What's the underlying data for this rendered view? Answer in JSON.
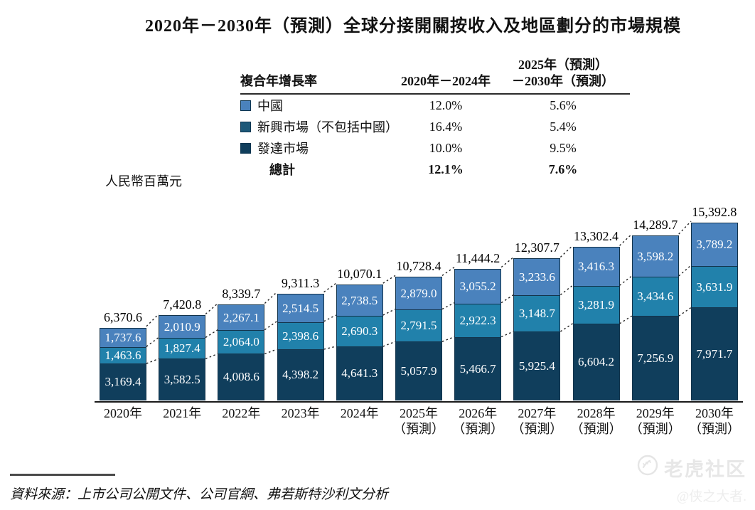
{
  "title": "2020年－2030年（預測）全球分接開關按收入及地區劃分的市場規模",
  "unit_label": "人民幣百萬元",
  "cagr_table": {
    "header": {
      "col_label": "複合年增長率",
      "col1": "2020年－2024年",
      "col2_line1": "2025年（預測）",
      "col2_line2": "－2030年（預測）"
    },
    "rows": [
      {
        "label": "中國",
        "swatch_color": "#4a82bd",
        "cagr_2020_2024": "12.0%",
        "cagr_2025_2030": "5.6%"
      },
      {
        "label": "新興市場（不包括中國）",
        "swatch_color": "#1d5878",
        "cagr_2020_2024": "16.4%",
        "cagr_2025_2030": "5.4%"
      },
      {
        "label": "發達市場",
        "swatch_color": "#103e5c",
        "cagr_2020_2024": "10.0%",
        "cagr_2025_2030": "9.5%"
      }
    ],
    "total_row": {
      "label": "總計",
      "cagr_2020_2024": "12.1%",
      "cagr_2025_2030": "7.6%"
    }
  },
  "chart_data": {
    "type": "bar",
    "stacked": true,
    "title": "2020年－2030年（預測）全球分接開關按收入及地區劃分的市場規模",
    "ylabel": "人民幣百萬元",
    "legend_position": "top",
    "grid": false,
    "categories": [
      "2020年",
      "2021年",
      "2022年",
      "2023年",
      "2024年",
      "2025年（預測）",
      "2026年（預測）",
      "2027年（預測）",
      "2028年（預測）",
      "2029年（預測）",
      "2030年（預測）"
    ],
    "series": [
      {
        "name": "中國",
        "color": "#4a82bd",
        "values": [
          1737.6,
          2010.9,
          2267.1,
          2514.5,
          2738.5,
          2879.0,
          3055.2,
          3233.6,
          3416.3,
          3598.2,
          3789.2
        ]
      },
      {
        "name": "新興市場（不包括中國）",
        "color": "#2181ab",
        "values": [
          1463.6,
          1827.4,
          2064.0,
          2398.6,
          2690.3,
          2791.5,
          2922.3,
          3148.7,
          3281.9,
          3434.6,
          3631.9
        ]
      },
      {
        "name": "發達市場",
        "color": "#103e5c",
        "values": [
          3169.4,
          3582.5,
          4008.6,
          4398.2,
          4641.3,
          5057.9,
          5466.7,
          5925.4,
          6604.2,
          7256.9,
          7971.7
        ]
      }
    ],
    "totals": [
      6370.6,
      7420.8,
      8339.7,
      9311.3,
      10070.1,
      10728.4,
      11444.2,
      12307.7,
      13302.4,
      14289.7,
      15392.8
    ],
    "ylim": [
      0,
      15392.8
    ]
  },
  "source": "資料來源：上市公司公開文件、公司官網、弗若斯特沙利文分析",
  "watermark": {
    "brand": "老虎社区",
    "handle": "@侠之大者."
  }
}
